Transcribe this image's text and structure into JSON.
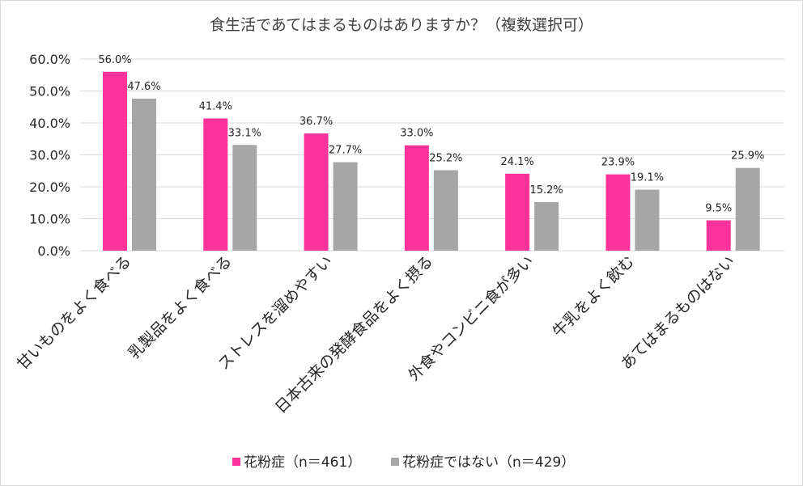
{
  "chart_data": {
    "type": "bar",
    "title": "食生活であてはまるものはありますか？（複数選択可）",
    "categories": [
      "甘いものをよく食べる",
      "乳製品をよく食べる",
      "ストレスを溜めやすい",
      "日本古来の発酵食品をよく摂る",
      "外食やコンビニ食が多い",
      "牛乳をよく飲む",
      "あてはまるものはない"
    ],
    "series": [
      {
        "name": "花粉症（n＝461）",
        "color": "#ff3399",
        "values": [
          56.0,
          41.4,
          36.7,
          33.0,
          24.1,
          23.9,
          9.5
        ]
      },
      {
        "name": "花粉症ではない（n＝429）",
        "color": "#a6a6a6",
        "values": [
          47.6,
          33.1,
          27.7,
          25.2,
          15.2,
          19.1,
          25.9
        ]
      }
    ],
    "y_ticks": [
      "0.0%",
      "10.0%",
      "20.0%",
      "30.0%",
      "40.0%",
      "50.0%",
      "60.0%"
    ],
    "ylim": [
      0,
      60
    ],
    "value_suffix": "%",
    "grid": true,
    "legend_position": "bottom"
  }
}
